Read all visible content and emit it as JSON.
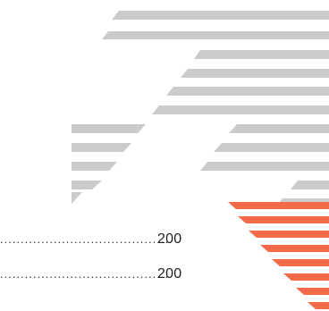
{
  "colors": {
    "stripe_gray": "#cbcbcb",
    "stripe_accent": "#f46a4a",
    "text": "#1f1f1f"
  },
  "toc": {
    "entries": [
      {
        "page": "200"
      },
      {
        "page": "200"
      }
    ]
  }
}
